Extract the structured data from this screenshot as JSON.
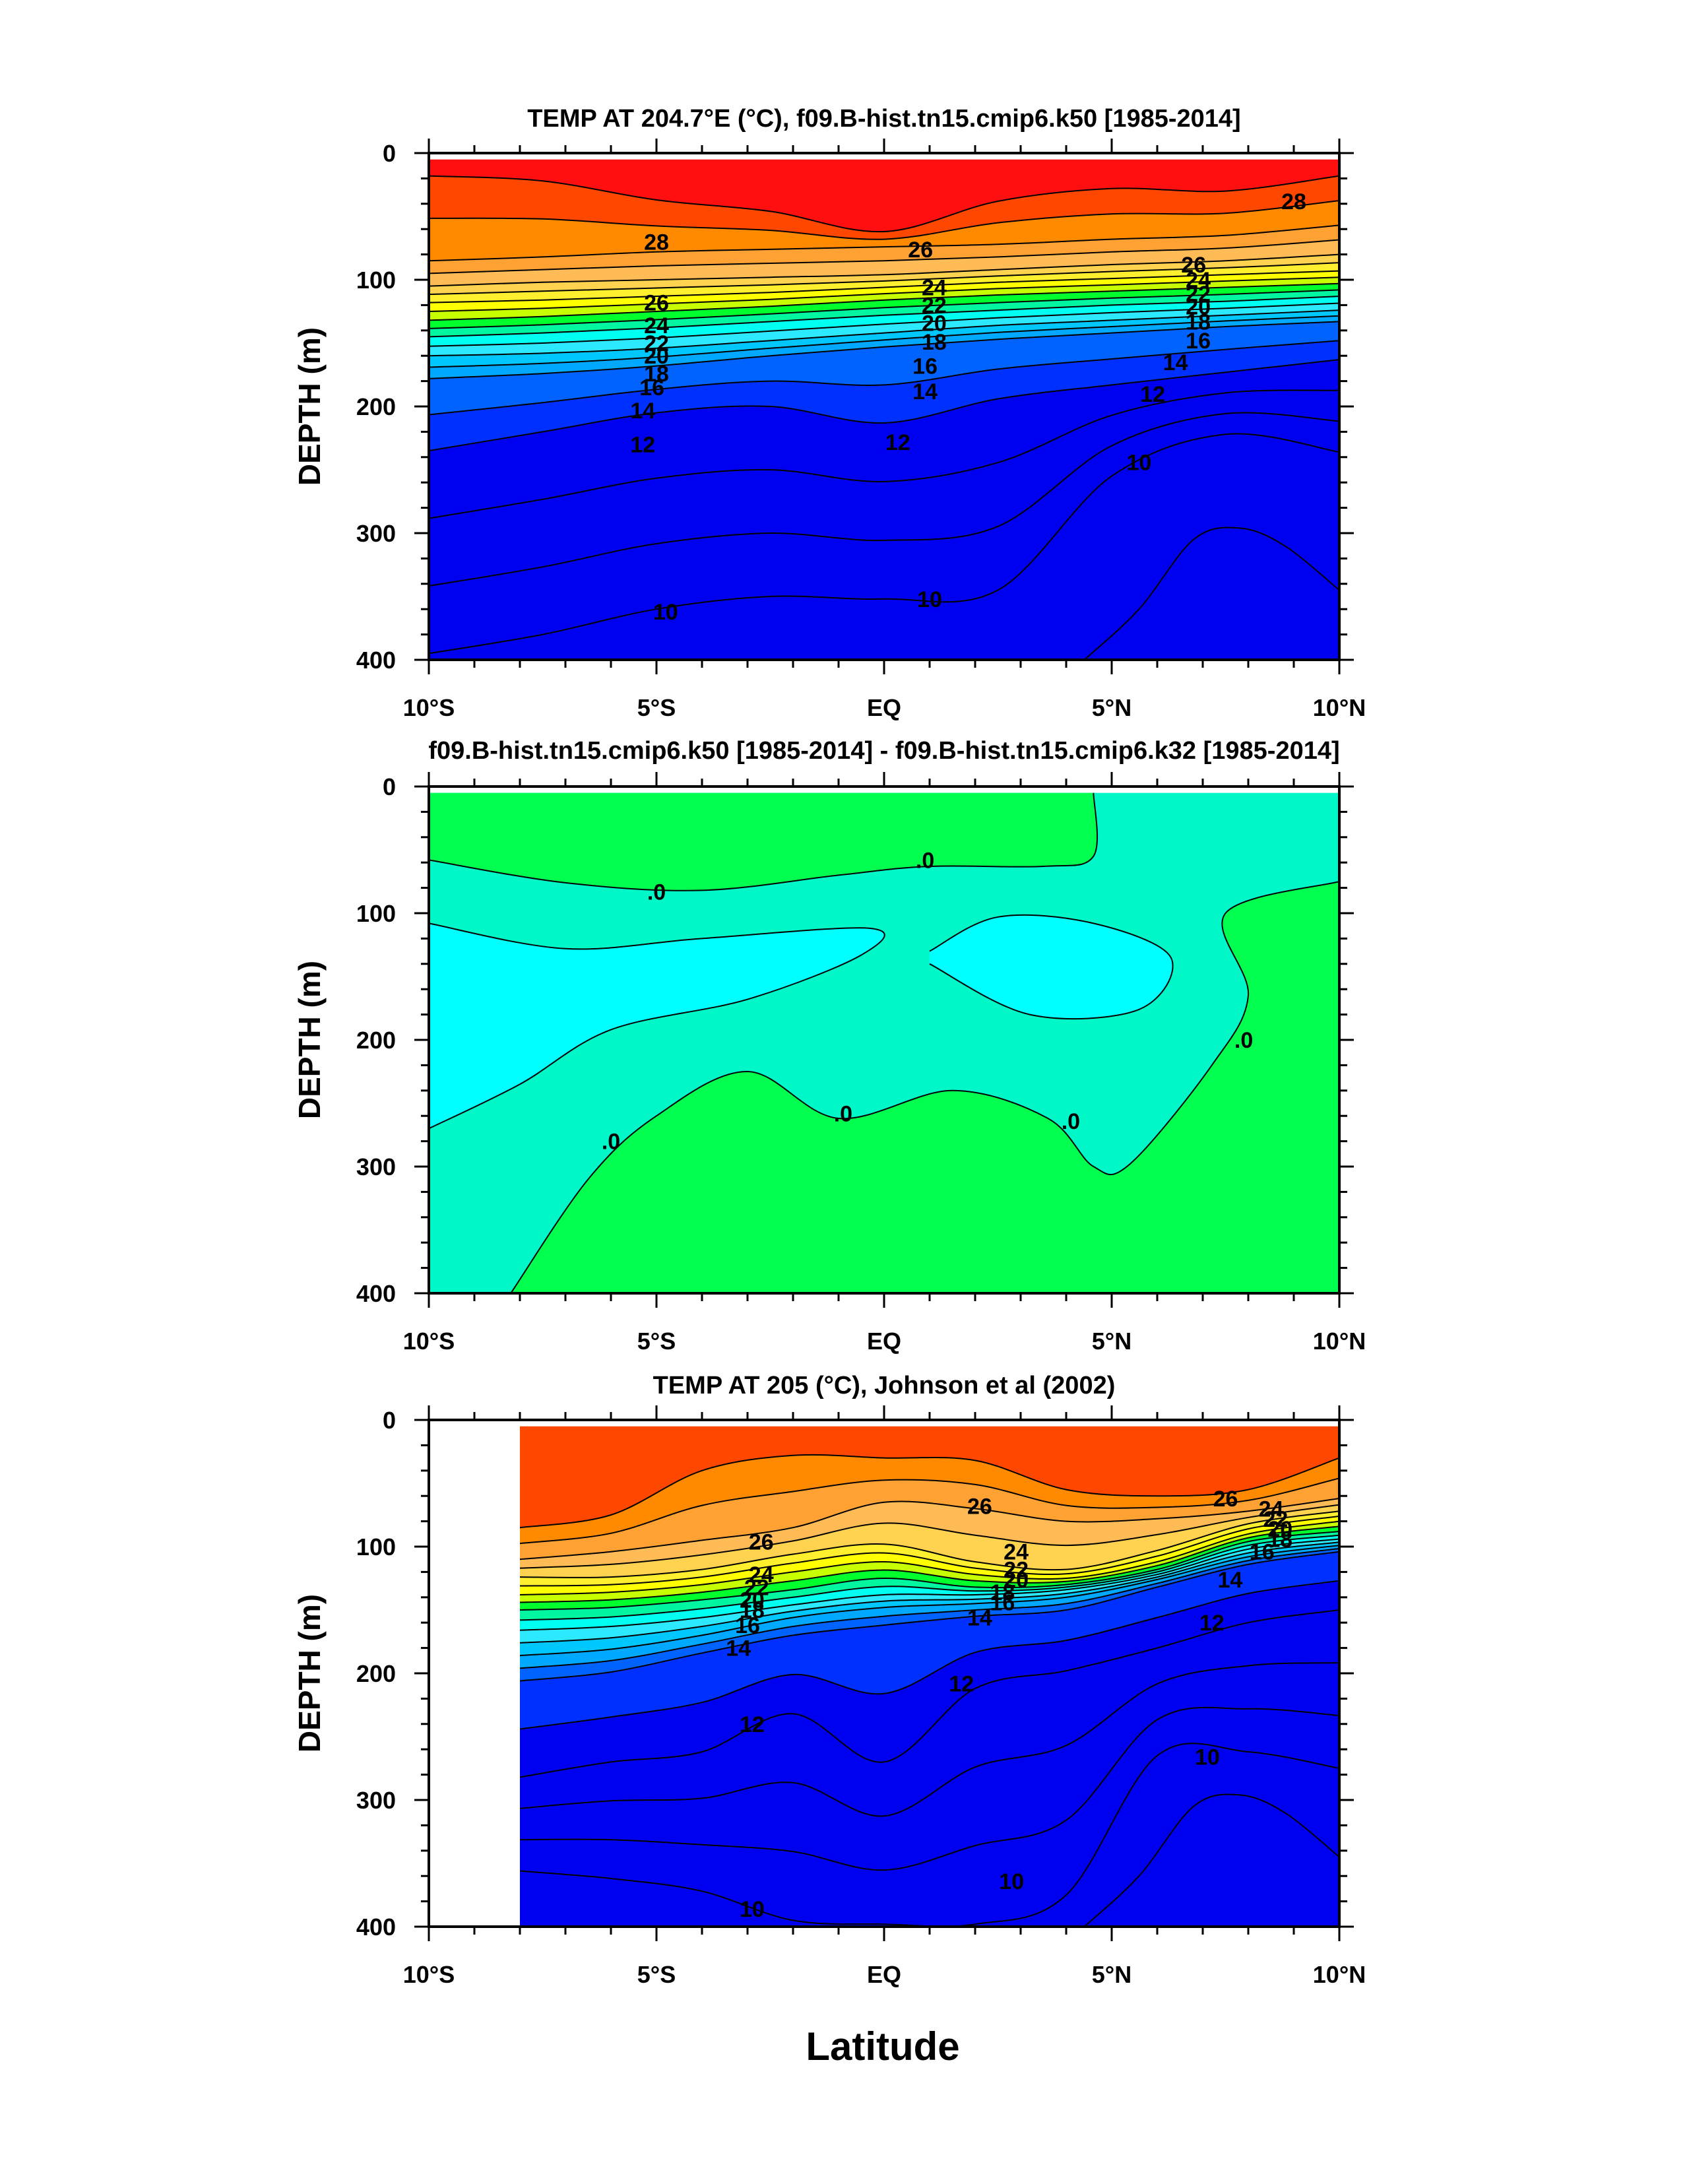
{
  "figure": {
    "xlabel": "Latitude"
  },
  "chart_data": [
    {
      "type": "contour",
      "title": "TEMP AT 204.7°E (°C), f09.B-hist.tn15.cmip6.k50 [1985-2014]",
      "ylabel": "DEPTH (m)",
      "x_tick_labels": [
        "10°S",
        "5°S",
        "EQ",
        "5°N",
        "10°N"
      ],
      "x_ticks": [
        -10,
        -5,
        0,
        5,
        10
      ],
      "xlim": [
        -10,
        10
      ],
      "y_tick_labels": [
        "0",
        "100",
        "200",
        "300",
        "400"
      ],
      "y_ticks": [
        0,
        100,
        200,
        300,
        400
      ],
      "ylim": [
        0,
        400
      ],
      "y_inverted": true,
      "x_data_range": [
        -10,
        10
      ],
      "colors": [
        "#dc0000",
        "#ff0f0f",
        "#ff4700",
        "#ff8a00",
        "#ffa233",
        "#ffbb55",
        "#ffd34f",
        "#ffef2f",
        "#ffff00",
        "#c8ff00",
        "#00ff2c",
        "#00f7a0",
        "#00fff0",
        "#2ce9ff",
        "#00c8ff",
        "#00a8ff",
        "#0062ff",
        "#0030ff",
        "#0000f0"
      ],
      "isotherm_depths": {
        "x": [
          -10,
          -7.5,
          -5,
          -2.5,
          0,
          2.5,
          5,
          7.5,
          10
        ],
        "T28": [
          18,
          22,
          37,
          46,
          62,
          38,
          28,
          30,
          18
        ],
        "T26": [
          85,
          82,
          78,
          76,
          74,
          72,
          68,
          65,
          57
        ],
        "T24": [
          105,
          102,
          100,
          98,
          96,
          92,
          88,
          85,
          80
        ],
        "T22": [
          118,
          116,
          113,
          110,
          106,
          102,
          99,
          96,
          93
        ],
        "T20": [
          132,
          129,
          125,
          121,
          116,
          112,
          109,
          106,
          103
        ],
        "T18": [
          145,
          142,
          138,
          133,
          128,
          124,
          120,
          117,
          113
        ],
        "T16": [
          160,
          158,
          154,
          148,
          142,
          136,
          132,
          128,
          124
        ],
        "T14": [
          178,
          174,
          168,
          160,
          153,
          147,
          142,
          137,
          133
        ],
        "T12": [
          235,
          220,
          205,
          200,
          213,
          194,
          183,
          173,
          163
        ],
        "T10": [
          395,
          380,
          360,
          350,
          352,
          345,
          255,
          222,
          236
        ]
      },
      "contour_labels": [
        {
          "text": "28",
          "x": -5.0,
          "y": 70
        },
        {
          "text": "28",
          "x": 9.0,
          "y": 38
        },
        {
          "text": "26",
          "x": 0.8,
          "y": 76
        },
        {
          "text": "26",
          "x": 6.8,
          "y": 88
        },
        {
          "text": "26",
          "x": -5.0,
          "y": 118
        },
        {
          "text": "24",
          "x": 1.1,
          "y": 106
        },
        {
          "text": "24",
          "x": 6.9,
          "y": 100
        },
        {
          "text": "24",
          "x": -5.0,
          "y": 136
        },
        {
          "text": "22",
          "x": 1.1,
          "y": 120
        },
        {
          "text": "22",
          "x": 6.9,
          "y": 111
        },
        {
          "text": "22",
          "x": -5.0,
          "y": 150
        },
        {
          "text": "20",
          "x": 1.1,
          "y": 134
        },
        {
          "text": "20",
          "x": 6.9,
          "y": 121
        },
        {
          "text": "20",
          "x": -5.0,
          "y": 160
        },
        {
          "text": "18",
          "x": 1.1,
          "y": 149
        },
        {
          "text": "18",
          "x": 6.9,
          "y": 133
        },
        {
          "text": "18",
          "x": -5.0,
          "y": 174
        },
        {
          "text": "16",
          "x": 0.9,
          "y": 168
        },
        {
          "text": "16",
          "x": 6.9,
          "y": 148
        },
        {
          "text": "16",
          "x": -5.1,
          "y": 185
        },
        {
          "text": "14",
          "x": 0.9,
          "y": 188
        },
        {
          "text": "14",
          "x": 6.4,
          "y": 165
        },
        {
          "text": "14",
          "x": -5.3,
          "y": 203
        },
        {
          "text": "12",
          "x": 0.3,
          "y": 228
        },
        {
          "text": "12",
          "x": 5.9,
          "y": 190
        },
        {
          "text": "12",
          "x": -5.3,
          "y": 230
        },
        {
          "text": "10",
          "x": -4.8,
          "y": 362
        },
        {
          "text": "10",
          "x": 1.0,
          "y": 352
        },
        {
          "text": "10",
          "x": 5.6,
          "y": 244
        }
      ]
    },
    {
      "type": "contour",
      "title": "f09.B-hist.tn15.cmip6.k50 [1985-2014] - f09.B-hist.tn15.cmip6.k32 [1985-2014]",
      "ylabel": "DEPTH (m)",
      "x_tick_labels": [
        "10°S",
        "5°S",
        "EQ",
        "5°N",
        "10°N"
      ],
      "x_ticks": [
        -10,
        -5,
        0,
        5,
        10
      ],
      "xlim": [
        -10,
        10
      ],
      "y_tick_labels": [
        "0",
        "100",
        "200",
        "300",
        "400"
      ],
      "y_ticks": [
        0,
        100,
        200,
        300,
        400
      ],
      "ylim": [
        0,
        400
      ],
      "y_inverted": true,
      "x_data_range": [
        -10,
        10
      ],
      "colors": [
        "#00ff4e",
        "#00f7c8",
        "#00ffff"
      ],
      "contour_labels": [
        {
          "text": ".0",
          "x": -5.0,
          "y": 83
        },
        {
          "text": ".0",
          "x": 0.9,
          "y": 58
        },
        {
          "text": ".0",
          "x": 7.9,
          "y": 200
        },
        {
          "text": ".0",
          "x": -0.9,
          "y": 258
        },
        {
          "text": ".0",
          "x": 4.1,
          "y": 264
        },
        {
          "text": ".0",
          "x": -6.0,
          "y": 280
        }
      ]
    },
    {
      "type": "contour",
      "title": "TEMP AT 205 (°C), Johnson et al (2002)",
      "ylabel": "DEPTH (m)",
      "x_tick_labels": [
        "10°S",
        "5°S",
        "EQ",
        "5°N",
        "10°N"
      ],
      "x_ticks": [
        -10,
        -5,
        0,
        5,
        10
      ],
      "xlim": [
        -10,
        10
      ],
      "y_tick_labels": [
        "0",
        "100",
        "200",
        "300",
        "400"
      ],
      "y_ticks": [
        0,
        100,
        200,
        300,
        400
      ],
      "ylim": [
        0,
        400
      ],
      "y_inverted": true,
      "x_data_range": [
        -8,
        10
      ],
      "colors": [
        "#ff0f0f",
        "#ff4700",
        "#ff8a00",
        "#ffa233",
        "#ffbb55",
        "#ffd34f",
        "#ffef2f",
        "#ffff00",
        "#c8ff00",
        "#00ff2c",
        "#00f7a0",
        "#00fff0",
        "#2ce9ff",
        "#00c8ff",
        "#00a8ff",
        "#0062ff",
        "#0030ff",
        "#0000f0"
      ],
      "isotherm_depths": {
        "x": [
          -8,
          -6,
          -4,
          -2,
          0,
          2,
          4,
          6,
          8,
          10
        ],
        "T28": [
          85,
          75,
          40,
          28,
          30,
          32,
          55,
          60,
          55,
          30
        ],
        "T26": [
          110,
          104,
          95,
          85,
          65,
          70,
          80,
          78,
          72,
          62
        ],
        "T24": [
          124,
          124,
          118,
          106,
          98,
          112,
          118,
          103,
          82,
          72
        ],
        "T22": [
          138,
          136,
          130,
          120,
          112,
          122,
          125,
          112,
          90,
          80
        ],
        "T20": [
          150,
          148,
          142,
          134,
          125,
          132,
          130,
          118,
          96,
          88
        ],
        "T18": [
          166,
          163,
          156,
          146,
          138,
          138,
          134,
          122,
          102,
          94
        ],
        "T16": [
          186,
          181,
          170,
          156,
          148,
          145,
          140,
          126,
          108,
          99
        ],
        "T14": [
          206,
          199,
          184,
          170,
          162,
          155,
          150,
          132,
          114,
          104
        ],
        "T12": [
          282,
          270,
          262,
          232,
          270,
          212,
          198,
          180,
          160,
          150
        ],
        "T10": [
          356,
          362,
          372,
          395,
          398,
          398,
          375,
          265,
          262,
          275
        ]
      },
      "contour_labels": [
        {
          "text": "26",
          "x": -2.7,
          "y": 96
        },
        {
          "text": "26",
          "x": 2.1,
          "y": 68
        },
        {
          "text": "26",
          "x": 7.5,
          "y": 62
        },
        {
          "text": "24",
          "x": -2.7,
          "y": 122
        },
        {
          "text": "24",
          "x": 2.9,
          "y": 104
        },
        {
          "text": "24",
          "x": 8.5,
          "y": 70
        },
        {
          "text": "22",
          "x": -2.8,
          "y": 132
        },
        {
          "text": "22",
          "x": 2.9,
          "y": 118
        },
        {
          "text": "22",
          "x": 8.6,
          "y": 78
        },
        {
          "text": "20",
          "x": -2.9,
          "y": 142
        },
        {
          "text": "20",
          "x": 2.9,
          "y": 126
        },
        {
          "text": "20",
          "x": 8.7,
          "y": 86
        },
        {
          "text": "18",
          "x": -2.9,
          "y": 150
        },
        {
          "text": "18",
          "x": 2.6,
          "y": 136
        },
        {
          "text": "18",
          "x": 8.7,
          "y": 94
        },
        {
          "text": "16",
          "x": -3.0,
          "y": 162
        },
        {
          "text": "16",
          "x": 2.6,
          "y": 144
        },
        {
          "text": "16",
          "x": 8.3,
          "y": 104
        },
        {
          "text": "14",
          "x": -3.2,
          "y": 180
        },
        {
          "text": "14",
          "x": 2.1,
          "y": 156
        },
        {
          "text": "14",
          "x": 7.6,
          "y": 126
        },
        {
          "text": "12",
          "x": -2.9,
          "y": 240
        },
        {
          "text": "12",
          "x": 1.7,
          "y": 208
        },
        {
          "text": "12",
          "x": 7.2,
          "y": 160
        },
        {
          "text": "10",
          "x": -2.9,
          "y": 386
        },
        {
          "text": "10",
          "x": 2.8,
          "y": 364
        },
        {
          "text": "10",
          "x": 7.1,
          "y": 266
        }
      ]
    }
  ]
}
